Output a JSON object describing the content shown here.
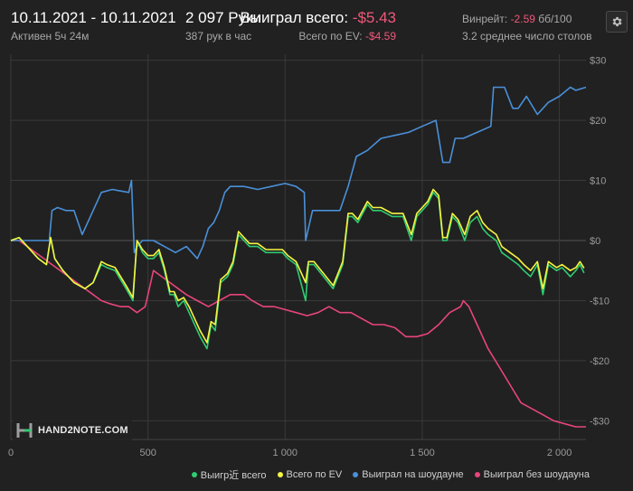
{
  "header": {
    "date_range": "10.11.2021 - 10.11.2021",
    "active": "Активен 5ч 24м",
    "hands": "2 097 Руки",
    "hands_per_hour": "387 рук в час",
    "won_label": "Выиграл всего:",
    "won_value": "-$5.43",
    "ev_label": "Всего по EV:",
    "ev_value": "-$4.59",
    "winrate_label": "Винрейт:",
    "winrate_value": "-2.59",
    "winrate_unit": "бб/100",
    "avg_tables": "3.2 среднее число столов"
  },
  "logo": {
    "text": "HAND2NOTE.COM"
  },
  "icons": {
    "settings": "gear-icon"
  },
  "colors": {
    "background": "#212121",
    "grid": "#3a3a3a",
    "won": "#2ecc71",
    "ev": "#f5f542",
    "showdown": "#4a90d9",
    "non_showdown": "#e8457a",
    "negative_text": "#f0587a"
  },
  "chart_data": {
    "type": "line",
    "xlabel": "",
    "ylabel": "",
    "xlim": [
      0,
      2097
    ],
    "ylim": [
      -31,
      31
    ],
    "x_ticks": [
      0,
      500,
      1000,
      1500,
      2000
    ],
    "x_tick_labels": [
      "0",
      "500",
      "1 000",
      "1 500",
      "2 000"
    ],
    "y_ticks": [
      30,
      20,
      10,
      0,
      -10,
      -20,
      -30
    ],
    "y_tick_labels": [
      "$30",
      "$20",
      "$10",
      "$0",
      "-$10",
      "-$20",
      "-$30"
    ],
    "grid": true,
    "legend_position": "bottom-right",
    "series": [
      {
        "name": "Выигр近 всего",
        "color": "#2ecc71",
        "points": [
          [
            0,
            0
          ],
          [
            30,
            0.5
          ],
          [
            60,
            -1
          ],
          [
            100,
            -3
          ],
          [
            130,
            -4
          ],
          [
            145,
            0.5
          ],
          [
            160,
            -3
          ],
          [
            190,
            -5
          ],
          [
            230,
            -7
          ],
          [
            270,
            -8
          ],
          [
            300,
            -7
          ],
          [
            330,
            -4
          ],
          [
            350,
            -4.5
          ],
          [
            380,
            -5
          ],
          [
            420,
            -8
          ],
          [
            445,
            -10
          ],
          [
            460,
            0
          ],
          [
            480,
            -2
          ],
          [
            500,
            -3
          ],
          [
            520,
            -3
          ],
          [
            540,
            -2
          ],
          [
            560,
            -5
          ],
          [
            580,
            -9
          ],
          [
            595,
            -9
          ],
          [
            610,
            -11
          ],
          [
            630,
            -10
          ],
          [
            650,
            -12
          ],
          [
            670,
            -14
          ],
          [
            690,
            -16
          ],
          [
            715,
            -18
          ],
          [
            730,
            -14
          ],
          [
            745,
            -15
          ],
          [
            765,
            -7
          ],
          [
            790,
            -6
          ],
          [
            810,
            -4
          ],
          [
            830,
            1
          ],
          [
            850,
            0
          ],
          [
            870,
            -1
          ],
          [
            900,
            -1
          ],
          [
            930,
            -2
          ],
          [
            960,
            -2
          ],
          [
            990,
            -2
          ],
          [
            1010,
            -3
          ],
          [
            1040,
            -4
          ],
          [
            1075,
            -10
          ],
          [
            1085,
            -4
          ],
          [
            1105,
            -4
          ],
          [
            1140,
            -6
          ],
          [
            1175,
            -8
          ],
          [
            1210,
            -4
          ],
          [
            1230,
            4
          ],
          [
            1245,
            4
          ],
          [
            1265,
            3
          ],
          [
            1300,
            6
          ],
          [
            1320,
            5
          ],
          [
            1350,
            5
          ],
          [
            1390,
            4
          ],
          [
            1430,
            4
          ],
          [
            1460,
            0
          ],
          [
            1480,
            4
          ],
          [
            1500,
            5
          ],
          [
            1520,
            6
          ],
          [
            1540,
            8
          ],
          [
            1560,
            7
          ],
          [
            1575,
            0
          ],
          [
            1590,
            0
          ],
          [
            1610,
            4
          ],
          [
            1630,
            3
          ],
          [
            1655,
            0
          ],
          [
            1675,
            3
          ],
          [
            1700,
            4
          ],
          [
            1720,
            2
          ],
          [
            1740,
            1
          ],
          [
            1770,
            0
          ],
          [
            1790,
            -2
          ],
          [
            1820,
            -3
          ],
          [
            1850,
            -4
          ],
          [
            1870,
            -5
          ],
          [
            1895,
            -6
          ],
          [
            1920,
            -4
          ],
          [
            1940,
            -9
          ],
          [
            1960,
            -4
          ],
          [
            1990,
            -5
          ],
          [
            2010,
            -4.5
          ],
          [
            2040,
            -6
          ],
          [
            2060,
            -5
          ],
          [
            2075,
            -4
          ],
          [
            2090,
            -5.4
          ]
        ]
      },
      {
        "name": "Всего по EV",
        "color": "#f5f542",
        "points": [
          [
            0,
            0
          ],
          [
            30,
            0.5
          ],
          [
            60,
            -1
          ],
          [
            100,
            -3
          ],
          [
            130,
            -4
          ],
          [
            145,
            0.5
          ],
          [
            160,
            -3
          ],
          [
            190,
            -5
          ],
          [
            230,
            -7
          ],
          [
            270,
            -8
          ],
          [
            300,
            -7
          ],
          [
            330,
            -3.5
          ],
          [
            350,
            -4
          ],
          [
            380,
            -4.5
          ],
          [
            420,
            -7.5
          ],
          [
            445,
            -9.5
          ],
          [
            460,
            0
          ],
          [
            480,
            -1.5
          ],
          [
            500,
            -2.5
          ],
          [
            520,
            -2.5
          ],
          [
            540,
            -1.5
          ],
          [
            560,
            -4.5
          ],
          [
            580,
            -8.5
          ],
          [
            595,
            -8.5
          ],
          [
            610,
            -10
          ],
          [
            630,
            -9.5
          ],
          [
            650,
            -11
          ],
          [
            670,
            -13
          ],
          [
            690,
            -15
          ],
          [
            715,
            -17
          ],
          [
            730,
            -13.5
          ],
          [
            745,
            -14
          ],
          [
            765,
            -6.5
          ],
          [
            790,
            -5.5
          ],
          [
            810,
            -3.5
          ],
          [
            830,
            1.5
          ],
          [
            850,
            0.5
          ],
          [
            870,
            -0.5
          ],
          [
            900,
            -0.5
          ],
          [
            930,
            -1.5
          ],
          [
            960,
            -1.5
          ],
          [
            990,
            -1.5
          ],
          [
            1010,
            -2.5
          ],
          [
            1040,
            -3.5
          ],
          [
            1075,
            -7
          ],
          [
            1085,
            -3.5
          ],
          [
            1105,
            -3.5
          ],
          [
            1140,
            -5.5
          ],
          [
            1175,
            -7.5
          ],
          [
            1210,
            -3.5
          ],
          [
            1230,
            4.5
          ],
          [
            1245,
            4.5
          ],
          [
            1265,
            3.5
          ],
          [
            1300,
            6.5
          ],
          [
            1320,
            5.5
          ],
          [
            1350,
            5.5
          ],
          [
            1390,
            4.5
          ],
          [
            1430,
            4.5
          ],
          [
            1460,
            1
          ],
          [
            1480,
            4.5
          ],
          [
            1500,
            5.5
          ],
          [
            1520,
            6.5
          ],
          [
            1540,
            8.5
          ],
          [
            1560,
            7.5
          ],
          [
            1575,
            0.5
          ],
          [
            1590,
            0.5
          ],
          [
            1610,
            4.5
          ],
          [
            1630,
            3.5
          ],
          [
            1655,
            1
          ],
          [
            1675,
            4
          ],
          [
            1700,
            5
          ],
          [
            1720,
            3
          ],
          [
            1740,
            2
          ],
          [
            1770,
            1
          ],
          [
            1790,
            -1
          ],
          [
            1820,
            -2
          ],
          [
            1850,
            -3
          ],
          [
            1870,
            -4
          ],
          [
            1895,
            -5
          ],
          [
            1920,
            -3.5
          ],
          [
            1940,
            -8
          ],
          [
            1960,
            -3.5
          ],
          [
            1990,
            -4.5
          ],
          [
            2010,
            -4
          ],
          [
            2040,
            -5
          ],
          [
            2060,
            -4.5
          ],
          [
            2075,
            -3.5
          ],
          [
            2090,
            -4.6
          ]
        ]
      },
      {
        "name": "Выиграл на шоудауне",
        "color": "#4a90d9",
        "points": [
          [
            0,
            0
          ],
          [
            40,
            0
          ],
          [
            60,
            0
          ],
          [
            140,
            0
          ],
          [
            150,
            5
          ],
          [
            170,
            5.5
          ],
          [
            200,
            5
          ],
          [
            230,
            5
          ],
          [
            260,
            1
          ],
          [
            300,
            5
          ],
          [
            330,
            8
          ],
          [
            370,
            8.5
          ],
          [
            430,
            8
          ],
          [
            440,
            10
          ],
          [
            450,
            -2
          ],
          [
            460,
            -1
          ],
          [
            480,
            0
          ],
          [
            520,
            0
          ],
          [
            560,
            -1
          ],
          [
            600,
            -2
          ],
          [
            640,
            -1
          ],
          [
            680,
            -3
          ],
          [
            700,
            -1
          ],
          [
            720,
            2
          ],
          [
            740,
            3
          ],
          [
            760,
            5
          ],
          [
            780,
            8
          ],
          [
            800,
            9
          ],
          [
            850,
            9
          ],
          [
            900,
            8.5
          ],
          [
            950,
            9
          ],
          [
            1000,
            9.5
          ],
          [
            1040,
            9
          ],
          [
            1070,
            8
          ],
          [
            1075,
            0
          ],
          [
            1100,
            5
          ],
          [
            1150,
            5
          ],
          [
            1200,
            5
          ],
          [
            1230,
            9
          ],
          [
            1260,
            14
          ],
          [
            1300,
            15
          ],
          [
            1350,
            17
          ],
          [
            1400,
            17.5
          ],
          [
            1450,
            18
          ],
          [
            1500,
            19
          ],
          [
            1550,
            20
          ],
          [
            1575,
            13
          ],
          [
            1600,
            13
          ],
          [
            1620,
            17
          ],
          [
            1650,
            17
          ],
          [
            1700,
            18
          ],
          [
            1750,
            19
          ],
          [
            1760,
            25.5
          ],
          [
            1800,
            25.5
          ],
          [
            1830,
            22
          ],
          [
            1850,
            22
          ],
          [
            1880,
            24
          ],
          [
            1920,
            21
          ],
          [
            1960,
            23
          ],
          [
            2000,
            24
          ],
          [
            2040,
            25.5
          ],
          [
            2060,
            25
          ],
          [
            2097,
            25.5
          ]
        ]
      },
      {
        "name": "Выиграл без шоудауна",
        "color": "#e8457a",
        "points": [
          [
            0,
            0
          ],
          [
            30,
            0
          ],
          [
            60,
            -1
          ],
          [
            90,
            -2
          ],
          [
            120,
            -3
          ],
          [
            150,
            -4
          ],
          [
            180,
            -5
          ],
          [
            210,
            -6
          ],
          [
            240,
            -7
          ],
          [
            270,
            -8
          ],
          [
            300,
            -9
          ],
          [
            330,
            -10
          ],
          [
            360,
            -10.5
          ],
          [
            400,
            -11
          ],
          [
            430,
            -11
          ],
          [
            460,
            -12
          ],
          [
            490,
            -11
          ],
          [
            520,
            -5
          ],
          [
            550,
            -6
          ],
          [
            580,
            -7
          ],
          [
            610,
            -8
          ],
          [
            640,
            -9
          ],
          [
            680,
            -10
          ],
          [
            720,
            -11
          ],
          [
            760,
            -10
          ],
          [
            800,
            -9
          ],
          [
            850,
            -9
          ],
          [
            880,
            -10
          ],
          [
            920,
            -11
          ],
          [
            960,
            -11
          ],
          [
            1000,
            -11.5
          ],
          [
            1040,
            -12
          ],
          [
            1080,
            -12.5
          ],
          [
            1120,
            -12
          ],
          [
            1160,
            -11
          ],
          [
            1200,
            -12
          ],
          [
            1240,
            -12
          ],
          [
            1280,
            -13
          ],
          [
            1320,
            -14
          ],
          [
            1360,
            -14
          ],
          [
            1400,
            -14.5
          ],
          [
            1440,
            -16
          ],
          [
            1480,
            -16
          ],
          [
            1520,
            -15.5
          ],
          [
            1560,
            -14
          ],
          [
            1600,
            -12
          ],
          [
            1640,
            -11
          ],
          [
            1650,
            -10
          ],
          [
            1670,
            -11
          ],
          [
            1700,
            -14
          ],
          [
            1740,
            -18
          ],
          [
            1780,
            -21
          ],
          [
            1820,
            -24
          ],
          [
            1860,
            -27
          ],
          [
            1900,
            -28
          ],
          [
            1940,
            -29
          ],
          [
            1980,
            -30
          ],
          [
            2020,
            -30.5
          ],
          [
            2060,
            -31
          ],
          [
            2097,
            -31
          ]
        ]
      }
    ]
  }
}
